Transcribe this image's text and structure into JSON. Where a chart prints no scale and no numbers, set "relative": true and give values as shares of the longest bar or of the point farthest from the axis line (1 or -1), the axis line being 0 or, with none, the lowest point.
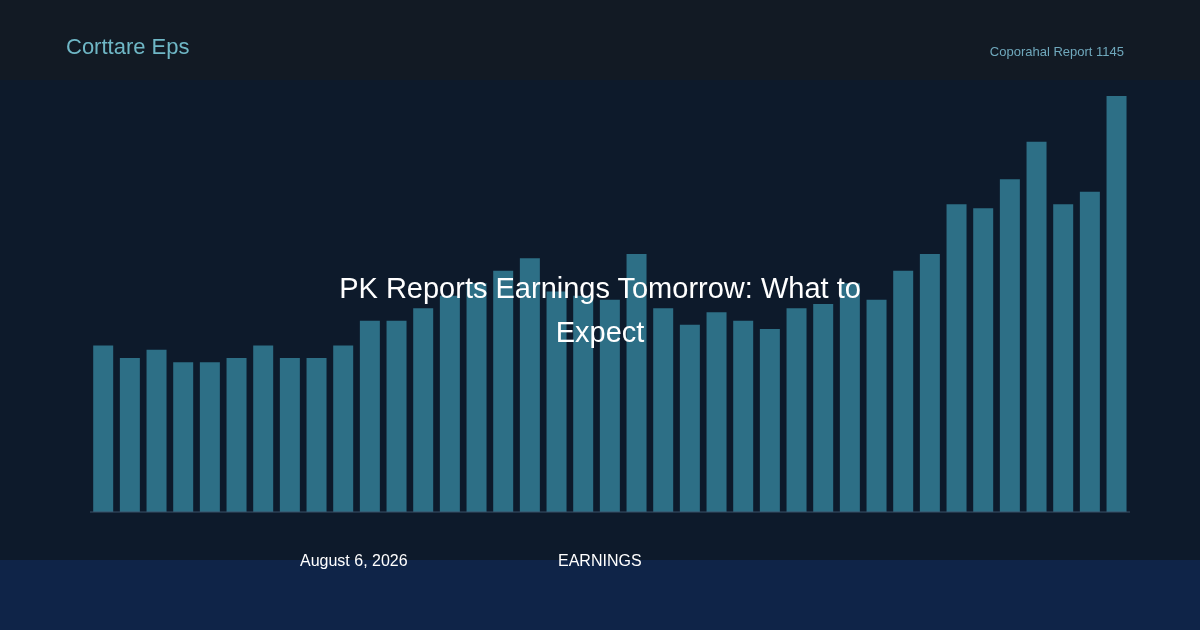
{
  "chart_data": {
    "type": "bar",
    "title": "PK Reports Earnings Tomorrow: What to Expect",
    "subtitle": "Corttare Eps",
    "relative": true,
    "color": "#2d6f86",
    "categories": [
      null,
      null,
      null,
      null,
      null,
      null,
      null,
      null,
      null,
      null,
      null,
      null,
      null,
      null,
      null,
      null,
      null,
      null,
      null,
      null,
      null,
      null,
      null,
      null,
      null,
      null,
      null,
      null,
      null,
      null,
      null,
      null,
      null,
      null,
      null,
      null,
      null,
      null,
      null
    ],
    "values": [
      0.4,
      0.37,
      0.39,
      0.36,
      0.36,
      0.37,
      0.4,
      0.37,
      0.37,
      0.4,
      0.46,
      0.46,
      0.49,
      0.52,
      0.55,
      0.58,
      0.61,
      0.53,
      0.52,
      0.51,
      0.62,
      0.49,
      0.45,
      0.48,
      0.46,
      0.44,
      0.49,
      0.5,
      0.55,
      0.51,
      0.58,
      0.62,
      0.74,
      0.73,
      0.8,
      0.89,
      0.74,
      0.77,
      1.0
    ],
    "annotations": [
      "Coporahal Report 1145",
      "August 6, 2026",
      "EARNINGS"
    ]
  }
}
